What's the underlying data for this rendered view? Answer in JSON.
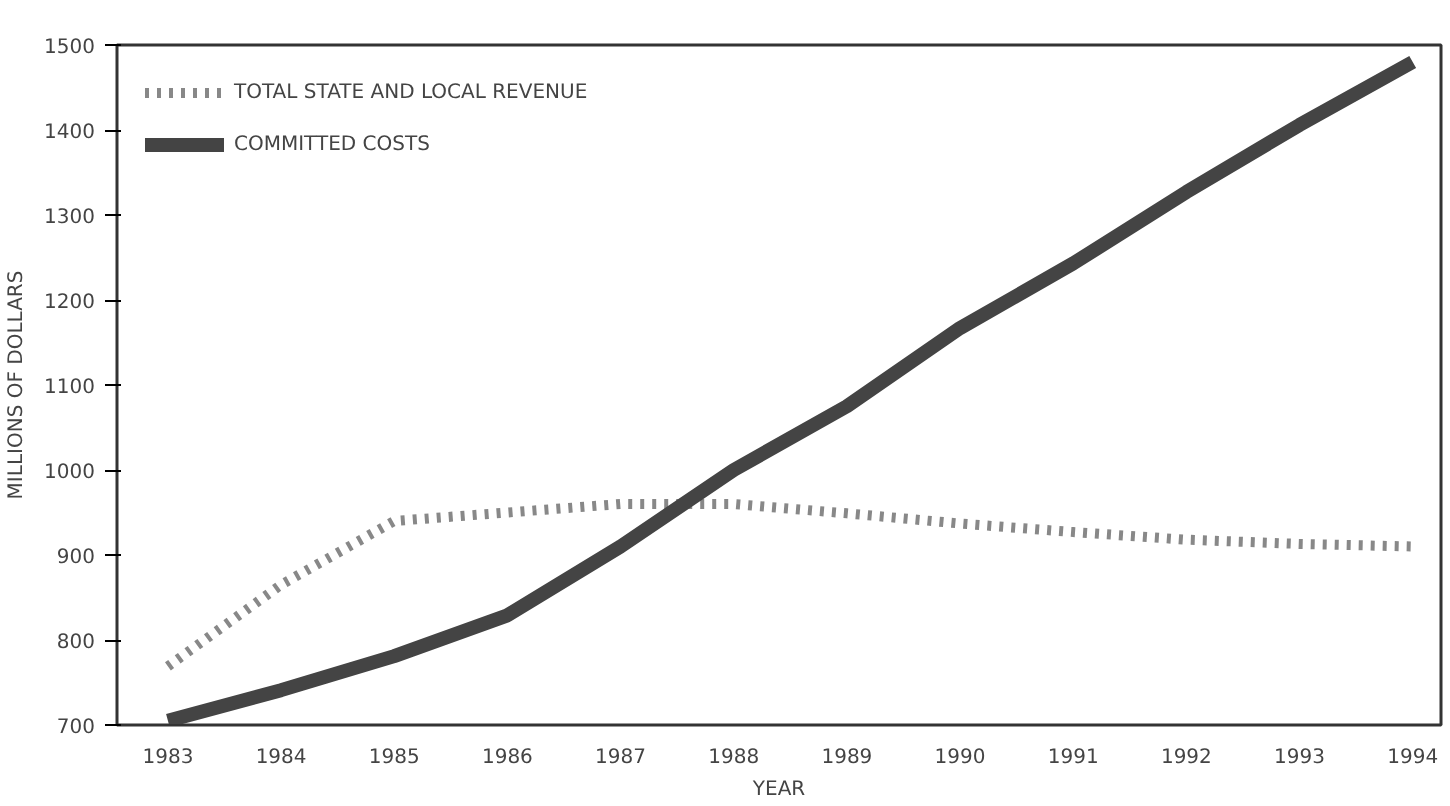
{
  "chart_data": {
    "type": "line",
    "xlabel": "YEAR",
    "ylabel": "MILLIONS OF DOLLARS",
    "categories": [
      "1983",
      "1984",
      "1985",
      "1986",
      "1987",
      "1988",
      "1989",
      "1990",
      "1991",
      "1992",
      "1993",
      "1994"
    ],
    "ylim": [
      700,
      1500
    ],
    "yticks": [
      700,
      800,
      900,
      1000,
      1100,
      1200,
      1300,
      1400,
      1500
    ],
    "grid": false,
    "legend": "top left",
    "marker": "none",
    "series": [
      {
        "name": "TOTAL STATE AND LOCAL REVENUE",
        "color": "#888888",
        "line_style": "dotted",
        "values": [
          769,
          865,
          940,
          950,
          960,
          960,
          949,
          937,
          927,
          918,
          913,
          910
        ]
      },
      {
        "name": "COMMITTED COSTS",
        "color": "#444444",
        "line_style": "solid",
        "values": [
          705,
          741,
          781,
          829,
          910,
          1000,
          1075,
          1167,
          1243,
          1327,
          1406,
          1480
        ]
      }
    ]
  }
}
